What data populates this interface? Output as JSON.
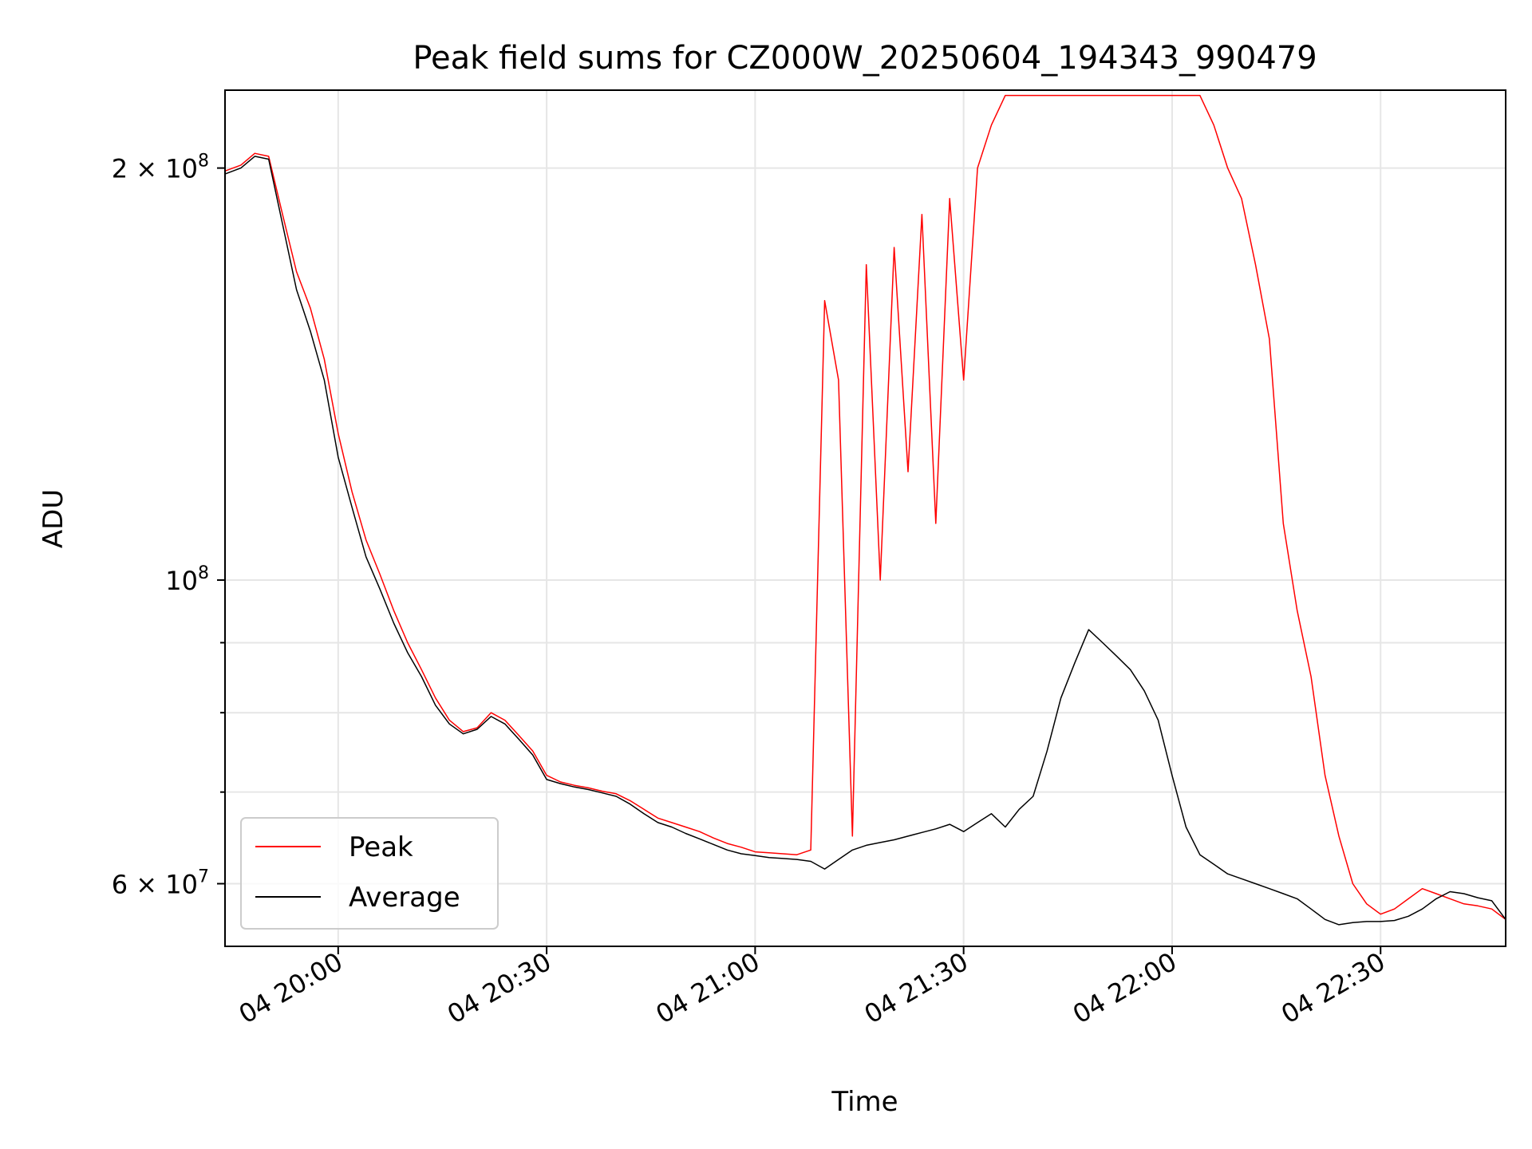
{
  "chart_data": {
    "type": "line",
    "title": "Peak field sums for CZ000W_20250604_194343_990479",
    "xlabel": "Time",
    "ylabel": "ADU",
    "x_unit": "time of day on day 04 (HH:MM)",
    "xlim": [
      "19:43:43",
      "22:48:00"
    ],
    "ylim": [
      54000000,
      228000000
    ],
    "yscale": "log",
    "grid": true,
    "legend_placement": "lower-left",
    "x_ticks": [
      {
        "value": "20:00",
        "label": "04 20:00"
      },
      {
        "value": "20:30",
        "label": "04 20:30"
      },
      {
        "value": "21:00",
        "label": "04 21:00"
      },
      {
        "value": "21:30",
        "label": "04 21:30"
      },
      {
        "value": "22:00",
        "label": "04 22:00"
      },
      {
        "value": "22:30",
        "label": "04 22:30"
      }
    ],
    "y_ticks_major": [
      {
        "value": 60000000,
        "label_mant": "6",
        "label_exp": "7"
      },
      {
        "value": 100000000,
        "label_mant": "",
        "label_exp": "8"
      },
      {
        "value": 200000000,
        "label_mant": "2",
        "label_exp": "8"
      }
    ],
    "y_ticks_minor": [
      70000000,
      80000000,
      90000000
    ],
    "series": [
      {
        "name": "Peak",
        "color": "#ff0000",
        "x": [
          "19:43:43",
          "19:46",
          "19:48",
          "19:50",
          "19:52",
          "19:54",
          "19:56",
          "19:58",
          "20:00",
          "20:02",
          "20:04",
          "20:06",
          "20:08",
          "20:10",
          "20:12",
          "20:14",
          "20:16",
          "20:18",
          "20:20",
          "20:22",
          "20:24",
          "20:26",
          "20:28",
          "20:30",
          "20:32",
          "20:34",
          "20:36",
          "20:38",
          "20:40",
          "20:42",
          "20:44",
          "20:46",
          "20:48",
          "20:50",
          "20:52",
          "20:54",
          "20:56",
          "20:58",
          "21:00",
          "21:02",
          "21:04",
          "21:06",
          "21:08",
          "21:10",
          "21:12",
          "21:14",
          "21:16",
          "21:18",
          "21:20",
          "21:22",
          "21:24",
          "21:26",
          "21:28",
          "21:30",
          "21:32",
          "21:34",
          "21:36",
          "21:38",
          "21:40",
          "21:42",
          "21:44",
          "21:46",
          "21:48",
          "21:50",
          "21:52",
          "21:54",
          "21:56",
          "21:58",
          "22:00",
          "22:02",
          "22:04",
          "22:06",
          "22:08",
          "22:10",
          "22:12",
          "22:14",
          "22:16",
          "22:18",
          "22:20",
          "22:22",
          "22:24",
          "22:26",
          "22:28",
          "22:30",
          "22:32",
          "22:34",
          "22:36",
          "22:38",
          "22:40",
          "22:42",
          "22:44",
          "22:46",
          "22:48"
        ],
        "y": [
          199000000,
          201000000,
          205000000,
          204000000,
          185000000,
          168000000,
          158000000,
          145000000,
          128000000,
          116000000,
          107000000,
          101000000,
          95000000,
          90000000,
          86000000,
          82000000,
          79000000,
          77500000,
          78000000,
          80000000,
          79000000,
          77000000,
          75000000,
          72000000,
          71200000,
          70800000,
          70500000,
          70100000,
          69800000,
          69000000,
          68000000,
          67000000,
          66500000,
          66000000,
          65500000,
          64800000,
          64200000,
          63800000,
          63300000,
          63200000,
          63100000,
          63000000,
          63500000,
          160000000,
          140000000,
          65000000,
          170000000,
          100000000,
          175000000,
          120000000,
          185000000,
          110000000,
          190000000,
          140000000,
          200000000,
          215000000,
          226000000,
          226000000,
          226000000,
          226000000,
          226000000,
          226000000,
          226000000,
          226000000,
          226000000,
          226000000,
          226000000,
          226000000,
          226000000,
          226000000,
          226000000,
          215000000,
          200000000,
          190000000,
          170000000,
          150000000,
          110000000,
          95000000,
          85000000,
          72000000,
          65000000,
          60000000,
          58000000,
          57000000,
          57500000,
          58500000,
          59500000,
          59000000,
          58500000,
          58000000,
          57800000,
          57500000,
          56500000
        ]
      },
      {
        "name": "Average",
        "color": "#000000",
        "x": [
          "19:43:43",
          "19:46",
          "19:48",
          "19:50",
          "19:52",
          "19:54",
          "19:56",
          "19:58",
          "20:00",
          "20:02",
          "20:04",
          "20:06",
          "20:08",
          "20:10",
          "20:12",
          "20:14",
          "20:16",
          "20:18",
          "20:20",
          "20:22",
          "20:24",
          "20:26",
          "20:28",
          "20:30",
          "20:32",
          "20:34",
          "20:36",
          "20:38",
          "20:40",
          "20:42",
          "20:44",
          "20:46",
          "20:48",
          "20:50",
          "20:52",
          "20:54",
          "20:56",
          "20:58",
          "21:00",
          "21:02",
          "21:04",
          "21:06",
          "21:08",
          "21:10",
          "21:12",
          "21:14",
          "21:16",
          "21:18",
          "21:20",
          "21:22",
          "21:24",
          "21:26",
          "21:28",
          "21:30",
          "21:32",
          "21:34",
          "21:36",
          "21:38",
          "21:40",
          "21:42",
          "21:44",
          "21:46",
          "21:48",
          "21:50",
          "21:52",
          "21:54",
          "21:56",
          "21:58",
          "22:00",
          "22:02",
          "22:04",
          "22:06",
          "22:08",
          "22:10",
          "22:12",
          "22:14",
          "22:16",
          "22:18",
          "22:20",
          "22:22",
          "22:24",
          "22:26",
          "22:28",
          "22:30",
          "22:32",
          "22:34",
          "22:36",
          "22:38",
          "22:40",
          "22:42",
          "22:44",
          "22:46",
          "22:48"
        ],
        "y": [
          198000000,
          200000000,
          204000000,
          203000000,
          182000000,
          163000000,
          152000000,
          140000000,
          123000000,
          113000000,
          104000000,
          98500000,
          93000000,
          88500000,
          85000000,
          81000000,
          78500000,
          77200000,
          77800000,
          79500000,
          78500000,
          76500000,
          74500000,
          71500000,
          71000000,
          70600000,
          70300000,
          69900000,
          69500000,
          68600000,
          67500000,
          66500000,
          66000000,
          65300000,
          64700000,
          64100000,
          63500000,
          63100000,
          62900000,
          62700000,
          62600000,
          62500000,
          62300000,
          61500000,
          62500000,
          63500000,
          64000000,
          64300000,
          64600000,
          65000000,
          65400000,
          65800000,
          66300000,
          65500000,
          66500000,
          67500000,
          66000000,
          68000000,
          69500000,
          75000000,
          82000000,
          87000000,
          92000000,
          90000000,
          88000000,
          86000000,
          83000000,
          79000000,
          72000000,
          66000000,
          63000000,
          62000000,
          61000000,
          60500000,
          60000000,
          59500000,
          59000000,
          58500000,
          57500000,
          56500000,
          56000000,
          56200000,
          56300000,
          56300000,
          56400000,
          56800000,
          57500000,
          58500000,
          59200000,
          59000000,
          58600000,
          58300000,
          56500000
        ]
      }
    ]
  }
}
